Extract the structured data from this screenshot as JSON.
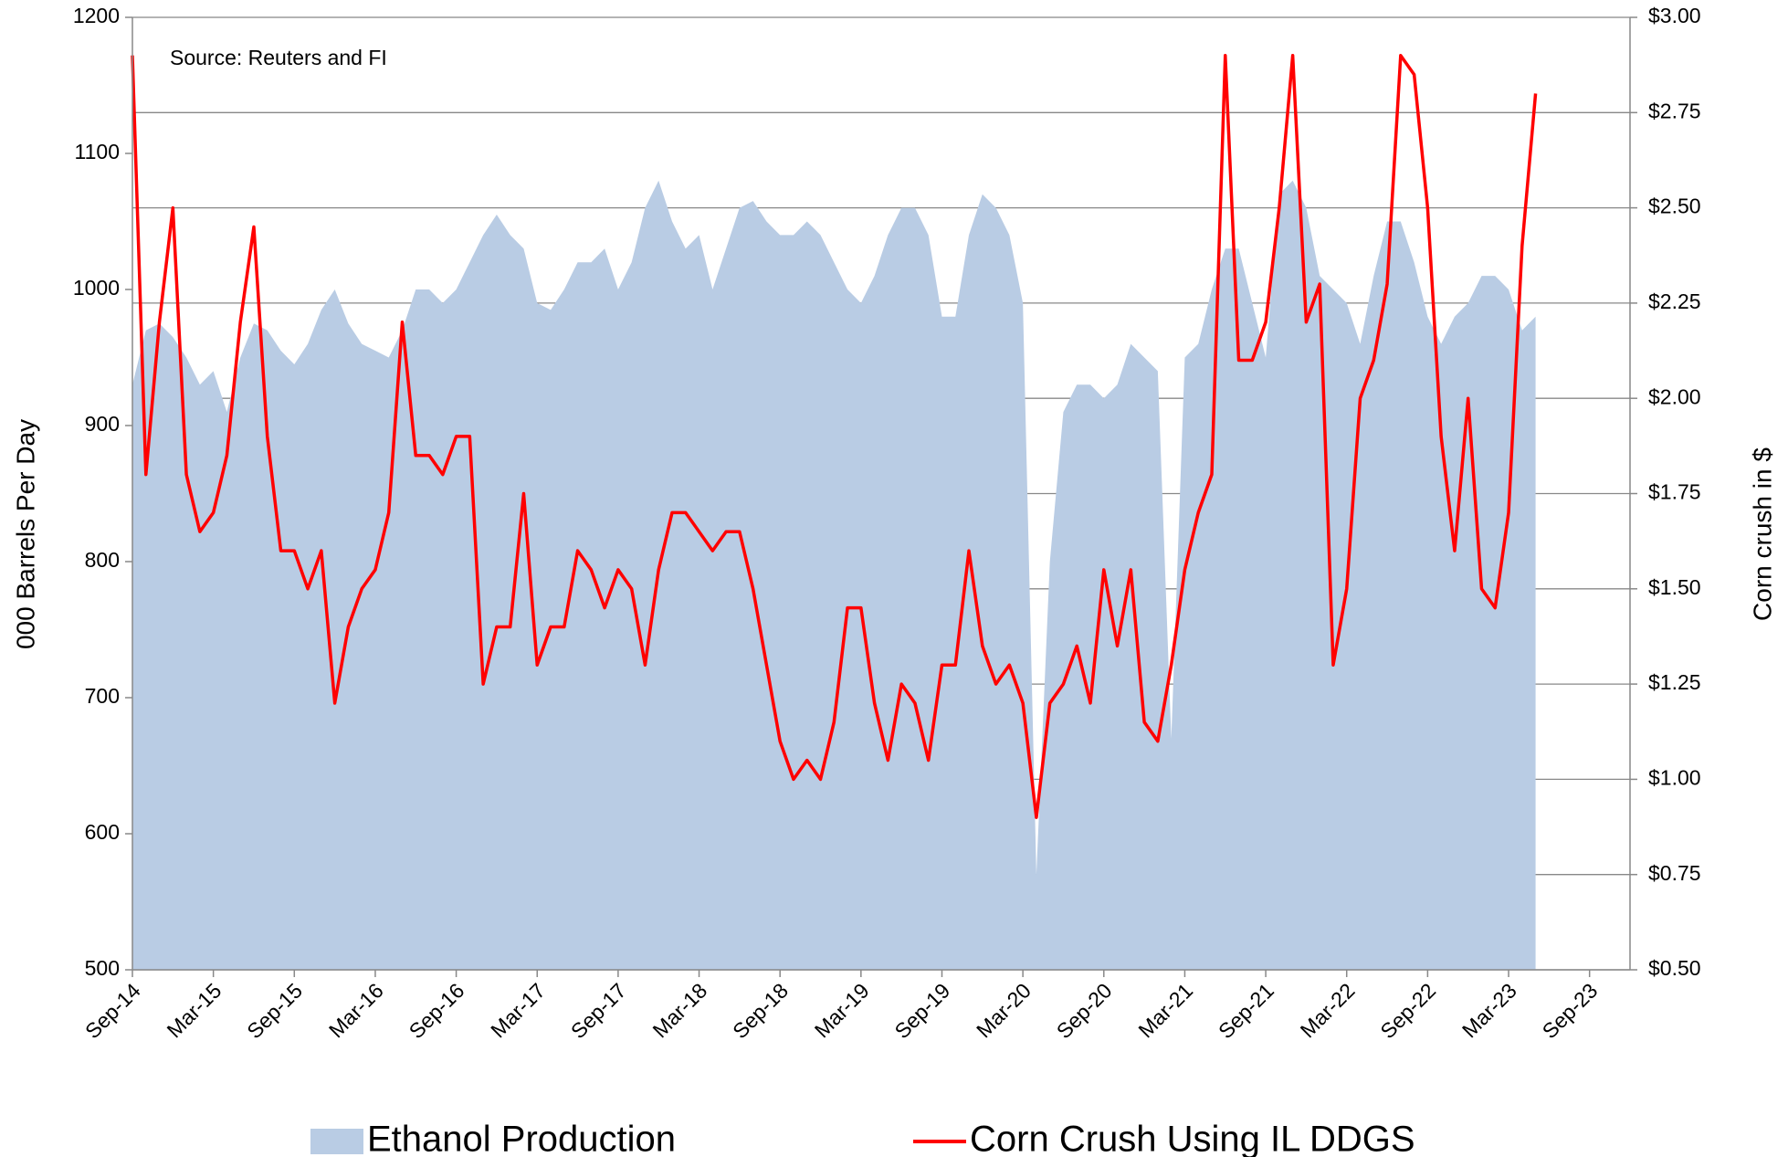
{
  "chart_data": {
    "type": "area-line",
    "annotation": "Source: Reuters and FI",
    "y_label": "000 Barrels Per Day",
    "y2_label": "Corn crush in $",
    "x": [
      "2014-09",
      "2014-10",
      "2014-11",
      "2014-12",
      "2015-01",
      "2015-02",
      "2015-03",
      "2015-04",
      "2015-05",
      "2015-06",
      "2015-07",
      "2015-08",
      "2015-09",
      "2015-10",
      "2015-11",
      "2015-12",
      "2016-01",
      "2016-02",
      "2016-03",
      "2016-04",
      "2016-05",
      "2016-06",
      "2016-07",
      "2016-08",
      "2016-09",
      "2016-10",
      "2016-11",
      "2016-12",
      "2017-01",
      "2017-02",
      "2017-03",
      "2017-04",
      "2017-05",
      "2017-06",
      "2017-07",
      "2017-08",
      "2017-09",
      "2017-10",
      "2017-11",
      "2017-12",
      "2018-01",
      "2018-02",
      "2018-03",
      "2018-04",
      "2018-05",
      "2018-06",
      "2018-07",
      "2018-08",
      "2018-09",
      "2018-10",
      "2018-11",
      "2018-12",
      "2019-01",
      "2019-02",
      "2019-03",
      "2019-04",
      "2019-05",
      "2019-06",
      "2019-07",
      "2019-08",
      "2019-09",
      "2019-10",
      "2019-11",
      "2019-12",
      "2020-01",
      "2020-02",
      "2020-03",
      "2020-04",
      "2020-05",
      "2020-06",
      "2020-07",
      "2020-08",
      "2020-09",
      "2020-10",
      "2020-11",
      "2020-12",
      "2021-01",
      "2021-02",
      "2021-03",
      "2021-04",
      "2021-05",
      "2021-06",
      "2021-07",
      "2021-08",
      "2021-09",
      "2021-10",
      "2021-11",
      "2021-12",
      "2022-01",
      "2022-02",
      "2022-03",
      "2022-04",
      "2022-05",
      "2022-06",
      "2022-07",
      "2022-08",
      "2022-09",
      "2022-10",
      "2022-11",
      "2022-12",
      "2023-01",
      "2023-02",
      "2023-03",
      "2023-04",
      "2023-05"
    ],
    "series": [
      {
        "name": "Ethanol Production",
        "color": "#b9cce4",
        "kind": "area",
        "values": [
          930,
          970,
          975,
          965,
          950,
          930,
          940,
          910,
          950,
          975,
          970,
          955,
          945,
          960,
          985,
          1000,
          975,
          960,
          955,
          950,
          970,
          1000,
          1000,
          990,
          1000,
          1020,
          1040,
          1055,
          1040,
          1030,
          990,
          985,
          1000,
          1020,
          1020,
          1030,
          1000,
          1020,
          1060,
          1080,
          1050,
          1030,
          1040,
          1000,
          1030,
          1060,
          1065,
          1050,
          1040,
          1040,
          1050,
          1040,
          1020,
          1000,
          990,
          1010,
          1040,
          1060,
          1060,
          1040,
          980,
          980,
          1040,
          1070,
          1060,
          1040,
          990,
          570,
          800,
          910,
          930,
          930,
          920,
          930,
          960,
          950,
          940,
          670,
          950,
          960,
          1000,
          1030,
          1030,
          990,
          950,
          1070,
          1080,
          1060,
          1010,
          1000,
          990,
          960,
          1010,
          1050,
          1050,
          1020,
          980,
          960,
          980,
          990,
          1010,
          1010,
          1000,
          970,
          980
        ]
      },
      {
        "name": "Corn Crush Using IL DDGS",
        "color": "#ff0000",
        "kind": "line",
        "axis": "y2",
        "values": [
          2.9,
          1.8,
          2.2,
          2.5,
          1.8,
          1.65,
          1.7,
          1.85,
          2.2,
          2.45,
          1.9,
          1.6,
          1.6,
          1.5,
          1.6,
          1.2,
          1.4,
          1.5,
          1.55,
          1.7,
          2.2,
          1.85,
          1.85,
          1.8,
          1.9,
          1.9,
          1.25,
          1.4,
          1.4,
          1.75,
          1.3,
          1.4,
          1.4,
          1.6,
          1.55,
          1.45,
          1.55,
          1.5,
          1.3,
          1.55,
          1.7,
          1.7,
          1.65,
          1.6,
          1.65,
          1.65,
          1.5,
          1.3,
          1.1,
          1.0,
          1.05,
          1.0,
          1.15,
          1.45,
          1.45,
          1.2,
          1.05,
          1.25,
          1.2,
          1.05,
          1.3,
          1.3,
          1.6,
          1.35,
          1.25,
          1.3,
          1.2,
          0.9,
          1.2,
          1.25,
          1.35,
          1.2,
          1.55,
          1.35,
          1.55,
          1.15,
          1.1,
          1.3,
          1.55,
          1.7,
          1.8,
          2.9,
          2.1,
          2.1,
          2.2,
          2.5,
          2.9,
          2.2,
          2.3,
          1.3,
          1.5,
          2.0,
          2.1,
          2.3,
          2.9,
          2.85,
          2.5,
          1.9,
          1.6,
          2.0,
          1.5,
          1.45,
          1.7,
          2.4,
          2.8
        ]
      }
    ],
    "xlim": [
      "2014-09",
      "2023-12"
    ],
    "xticks": [
      {
        "value": "2014-09",
        "label": "Sep-14"
      },
      {
        "value": "2015-03",
        "label": "Mar-15"
      },
      {
        "value": "2015-09",
        "label": "Sep-15"
      },
      {
        "value": "2016-03",
        "label": "Mar-16"
      },
      {
        "value": "2016-09",
        "label": "Sep-16"
      },
      {
        "value": "2017-03",
        "label": "Mar-17"
      },
      {
        "value": "2017-09",
        "label": "Sep-17"
      },
      {
        "value": "2018-03",
        "label": "Mar-18"
      },
      {
        "value": "2018-09",
        "label": "Sep-18"
      },
      {
        "value": "2019-03",
        "label": "Mar-19"
      },
      {
        "value": "2019-09",
        "label": "Sep-19"
      },
      {
        "value": "2020-03",
        "label": "Mar-20"
      },
      {
        "value": "2020-09",
        "label": "Sep-20"
      },
      {
        "value": "2021-03",
        "label": "Mar-21"
      },
      {
        "value": "2021-09",
        "label": "Sep-21"
      },
      {
        "value": "2022-03",
        "label": "Mar-22"
      },
      {
        "value": "2022-09",
        "label": "Sep-22"
      },
      {
        "value": "2023-03",
        "label": "Mar-23"
      },
      {
        "value": "2023-09",
        "label": "Sep-23"
      }
    ],
    "ylim": [
      500,
      1200
    ],
    "yticks": [
      500,
      600,
      700,
      800,
      900,
      1000,
      1100,
      1200
    ],
    "y2lim": [
      0.5,
      3.0
    ],
    "y2ticks": [
      {
        "value": 0.5,
        "label": "$0.50"
      },
      {
        "value": 0.75,
        "label": "$0.75"
      },
      {
        "value": 1.0,
        "label": "$1.00"
      },
      {
        "value": 1.25,
        "label": "$1.25"
      },
      {
        "value": 1.5,
        "label": "$1.50"
      },
      {
        "value": 1.75,
        "label": "$1.75"
      },
      {
        "value": 2.0,
        "label": "$2.00"
      },
      {
        "value": 2.25,
        "label": "$2.25"
      },
      {
        "value": 2.5,
        "label": "$2.50"
      },
      {
        "value": 2.75,
        "label": "$2.75"
      },
      {
        "value": 3.0,
        "label": "$3.00"
      }
    ],
    "grid": true,
    "legend": "bottom"
  }
}
